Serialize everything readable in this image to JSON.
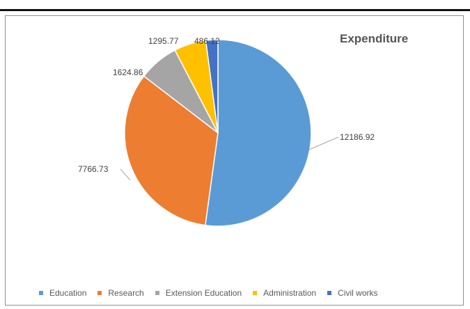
{
  "chart_data": {
    "type": "pie",
    "title": "Expenditure",
    "categories": [
      "Education",
      "Research",
      "Extension Education",
      "Administration",
      "Civil works"
    ],
    "values": [
      12186.92,
      7766.73,
      1624.86,
      1295.77,
      486.12
    ],
    "labels": [
      "12186.92",
      "7766.73",
      "1624.86",
      "1295.77",
      "486.12"
    ],
    "colors": [
      "#5B9BD5",
      "#ED7D31",
      "#A5A5A5",
      "#FFC000",
      "#4472C4"
    ],
    "legend_position": "bottom"
  }
}
